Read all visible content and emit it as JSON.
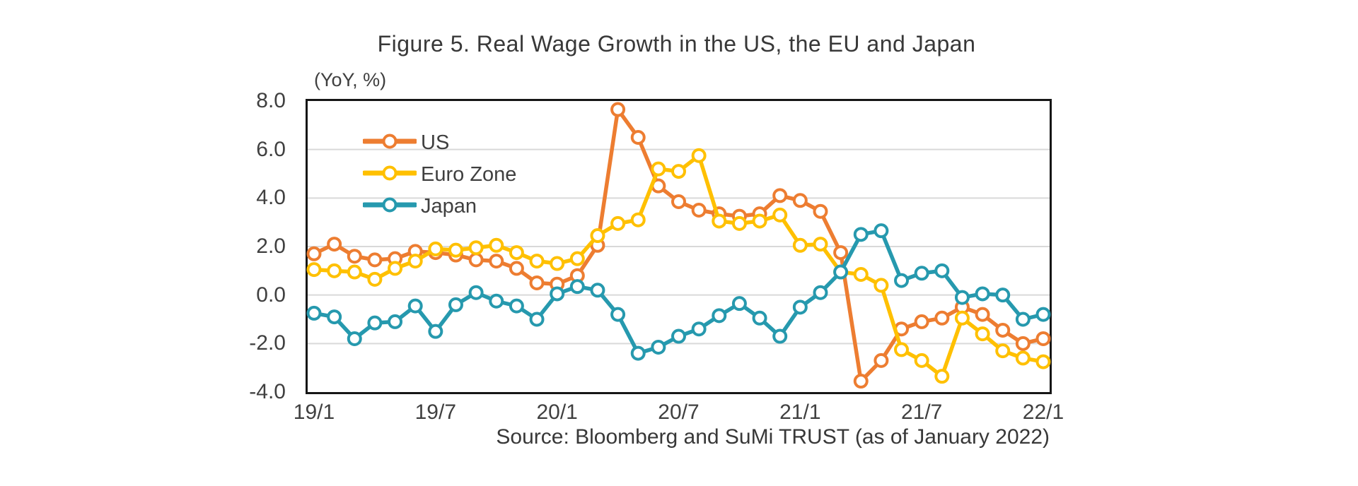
{
  "header": {
    "title": "Figure 5. Real Wage Growth in the US, the EU and Japan"
  },
  "footer": {
    "source": "Source: Bloomberg and SuMi TRUST (as of January 2022)"
  },
  "chart_data": {
    "type": "line",
    "title": "Figure 5. Real Wage Growth in the US, the EU and Japan",
    "axis_note": "(YoY, %)",
    "xlabel": "",
    "ylabel": "(YoY, %)",
    "ylim": [
      -4,
      8
    ],
    "grid": true,
    "legend_position": "top-left-inside",
    "y_ticks": [
      {
        "label": "8.0",
        "value": 8
      },
      {
        "label": "6.0",
        "value": 6
      },
      {
        "label": "4.0",
        "value": 4
      },
      {
        "label": "2.0",
        "value": 2
      },
      {
        "label": "0.0",
        "value": 0
      },
      {
        "label": "-2.0",
        "value": -2
      },
      {
        "label": "-4.0",
        "value": -4
      }
    ],
    "x_ticks": [
      {
        "label": "19/1",
        "month": 0
      },
      {
        "label": "19/7",
        "month": 6
      },
      {
        "label": "20/1",
        "month": 12
      },
      {
        "label": "20/7",
        "month": 18
      },
      {
        "label": "21/1",
        "month": 24
      },
      {
        "label": "21/7",
        "month": 30
      },
      {
        "label": "22/1",
        "month": 36
      }
    ],
    "categories": [
      "19/1",
      "19/2",
      "19/3",
      "19/4",
      "19/5",
      "19/6",
      "19/7",
      "19/8",
      "19/9",
      "19/10",
      "19/11",
      "19/12",
      "20/1",
      "20/2",
      "20/3",
      "20/4",
      "20/5",
      "20/6",
      "20/7",
      "20/8",
      "20/9",
      "20/10",
      "20/11",
      "20/12",
      "21/1",
      "21/2",
      "21/3",
      "21/4",
      "21/5",
      "21/6",
      "21/7",
      "21/8",
      "21/9",
      "21/10",
      "21/11",
      "21/12",
      "22/1"
    ],
    "series": [
      {
        "name": "US",
        "color": "#ED7D31",
        "values": [
          1.7,
          2.1,
          1.6,
          1.45,
          1.5,
          1.8,
          1.75,
          1.65,
          1.45,
          1.4,
          1.1,
          0.5,
          0.45,
          0.8,
          2.05,
          7.65,
          6.5,
          4.5,
          3.85,
          3.5,
          3.35,
          3.25,
          3.35,
          4.1,
          3.9,
          3.45,
          1.75,
          -3.55,
          -2.7,
          -1.4,
          -1.1,
          -0.95,
          -0.5,
          -0.8,
          -1.45,
          -2.0,
          -1.8
        ]
      },
      {
        "name": "Euro Zone",
        "color": "#FFC000",
        "values": [
          1.05,
          1.0,
          0.95,
          0.65,
          1.1,
          1.4,
          1.9,
          1.85,
          1.95,
          2.05,
          1.75,
          1.4,
          1.3,
          1.5,
          2.45,
          2.95,
          3.1,
          5.2,
          5.1,
          5.75,
          3.05,
          2.95,
          3.05,
          3.3,
          2.05,
          2.1,
          0.95,
          0.85,
          0.4,
          -2.25,
          -2.7,
          -3.35,
          -0.95,
          -1.6,
          -2.3,
          -2.6,
          -2.75
        ]
      },
      {
        "name": "Japan",
        "color": "#2699AE",
        "values": [
          -0.75,
          -0.9,
          -1.8,
          -1.15,
          -1.1,
          -0.45,
          -1.5,
          -0.4,
          0.1,
          -0.25,
          -0.45,
          -1.0,
          0.05,
          0.35,
          0.2,
          -0.8,
          -2.4,
          -2.15,
          -1.7,
          -1.4,
          -0.85,
          -0.35,
          -0.95,
          -1.7,
          -0.5,
          0.1,
          0.95,
          2.5,
          2.65,
          0.6,
          0.9,
          1.0,
          -0.1,
          0.05,
          0.0,
          -1.0,
          -0.8
        ]
      }
    ],
    "style": {
      "gridline_color": "#D9D9D9",
      "plot_border_color": "#161616",
      "text_color": "#3F3F3F",
      "line_width": 5.5,
      "marker_radius": 8.5,
      "marker_stroke": 4,
      "marker_fill": "#FFFFFF"
    }
  }
}
